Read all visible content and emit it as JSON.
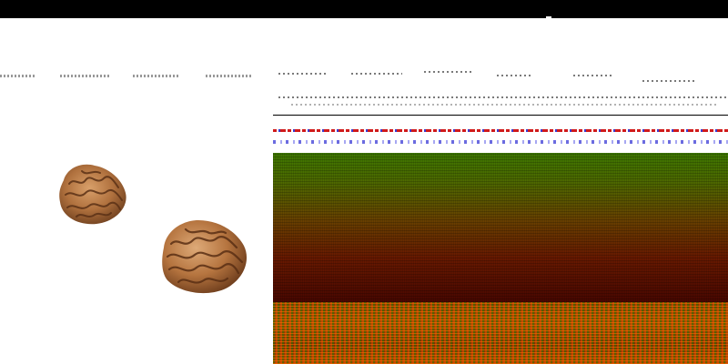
{
  "colors": {
    "topbar": "#000000",
    "background": "#ffffff",
    "accent_red": "#d01a1a",
    "accent_blue": "#3a3ad6",
    "green": "#3f7a00",
    "brown": "#b56a3a"
  },
  "images": [
    {
      "name": "wrinkled-walnut-object-1",
      "icon": "walnut-icon"
    },
    {
      "name": "wrinkled-walnut-object-2",
      "icon": "walnut-icon"
    }
  ]
}
